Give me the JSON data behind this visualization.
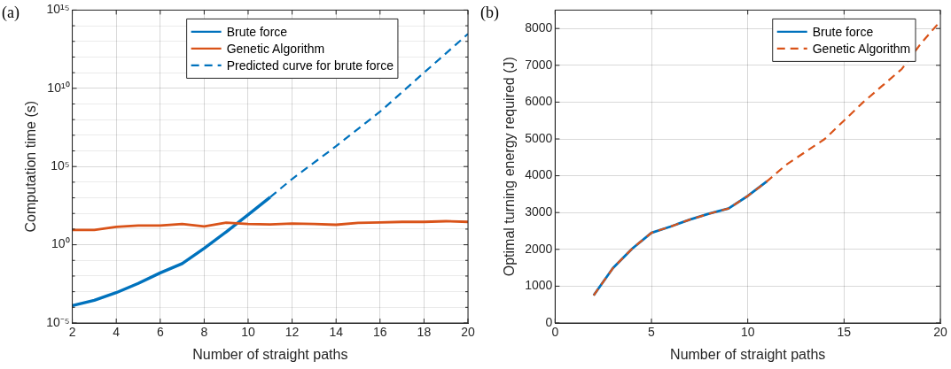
{
  "chart_data": [
    {
      "type": "line",
      "title": "(a)",
      "xlabel": "Number of straight paths",
      "ylabel": "Computation time (s)",
      "log": "y",
      "grid": true,
      "legend": "top",
      "xlim": [
        2,
        20
      ],
      "xticks": [
        2,
        4,
        6,
        8,
        10,
        12,
        14,
        16,
        18,
        20
      ],
      "ylim": [
        1e-05,
        1000000000000000.0
      ],
      "yticks": [
        {
          "value": 1e-05,
          "label": "10⁻⁵"
        },
        {
          "value": 0.0001,
          "label": null
        },
        {
          "value": 0.001,
          "label": null
        },
        {
          "value": 0.01,
          "label": null
        },
        {
          "value": 0.1,
          "label": null
        },
        {
          "value": 1,
          "label": "10⁰"
        },
        {
          "value": 10.0,
          "label": null
        },
        {
          "value": 100.0,
          "label": null
        },
        {
          "value": 1000.0,
          "label": null
        },
        {
          "value": 10000.0,
          "label": null
        },
        {
          "value": 100000.0,
          "label": "10⁵"
        },
        {
          "value": 1000000.0,
          "label": null
        },
        {
          "value": 10000000.0,
          "label": null
        },
        {
          "value": 100000000.0,
          "label": null
        },
        {
          "value": 1000000000.0,
          "label": null
        },
        {
          "value": 10000000000.0,
          "label": "10¹⁰"
        },
        {
          "value": 100000000000.0,
          "label": null
        },
        {
          "value": 1000000000000.0,
          "label": null
        },
        {
          "value": 10000000000000.0,
          "label": null
        },
        {
          "value": 100000000000000.0,
          "label": null
        },
        {
          "value": 1000000000000000.0,
          "label": "10¹⁵"
        }
      ],
      "series": [
        {
          "name": "Brute force",
          "color": "#0072bd",
          "line_style": "solid",
          "x": [
            2,
            3,
            4,
            5,
            6,
            7,
            8,
            9,
            10,
            11
          ],
          "values": [
            0.00013,
            0.00028,
            0.00087,
            0.0034,
            0.016,
            0.063,
            0.59,
            6.6,
            83,
            1100
          ]
        },
        {
          "name": "Genetic Algorithm",
          "color": "#d95319",
          "line_style": "solid",
          "x": [
            2,
            3,
            4,
            5,
            6,
            7,
            8,
            9,
            10,
            11,
            12,
            13,
            14,
            15,
            16,
            17,
            18,
            19,
            20
          ],
          "values": [
            8.9,
            8.9,
            14,
            17,
            17,
            21,
            15,
            26,
            21,
            20,
            23,
            21,
            19,
            25,
            27,
            29,
            29,
            32,
            29
          ]
        },
        {
          "name": "Predicted curve for brute force",
          "color": "#0072bd",
          "line_style": "dashed",
          "x": [
            11,
            12,
            14,
            16,
            18,
            20
          ],
          "values": [
            1100,
            16000,
            2000000,
            320000000,
            100000000000,
            30000000000000
          ]
        }
      ]
    },
    {
      "type": "line",
      "title": "(b)",
      "xlabel": "Number of straight paths",
      "ylabel": "Optimal turning energy required (J)",
      "grid": true,
      "legend": "top right",
      "xlim": [
        0,
        20
      ],
      "xticks": [
        0,
        5,
        10,
        15,
        20
      ],
      "ylim": [
        0,
        8500
      ],
      "yticks": [
        0,
        1000,
        2000,
        3000,
        4000,
        5000,
        6000,
        7000,
        8000
      ],
      "series": [
        {
          "name": "Brute force",
          "color": "#0072bd",
          "line_style": "solid",
          "x": [
            2,
            3,
            4,
            5,
            6,
            7,
            8,
            9,
            10,
            11
          ],
          "values": [
            750,
            1490,
            2020,
            2450,
            2620,
            2810,
            2970,
            3110,
            3450,
            3850
          ]
        },
        {
          "name": "Genetic Algorithm",
          "color": "#d95319",
          "line_style": "dashed",
          "x": [
            2,
            3,
            4,
            5,
            6,
            7,
            8,
            9,
            10,
            11,
            12,
            13,
            14,
            15,
            16,
            17,
            18,
            19,
            20
          ],
          "values": [
            750,
            1490,
            2020,
            2450,
            2620,
            2810,
            2970,
            3110,
            3450,
            3850,
            4300,
            4650,
            5000,
            5500,
            6000,
            6450,
            6900,
            7600,
            8200
          ]
        }
      ]
    }
  ]
}
